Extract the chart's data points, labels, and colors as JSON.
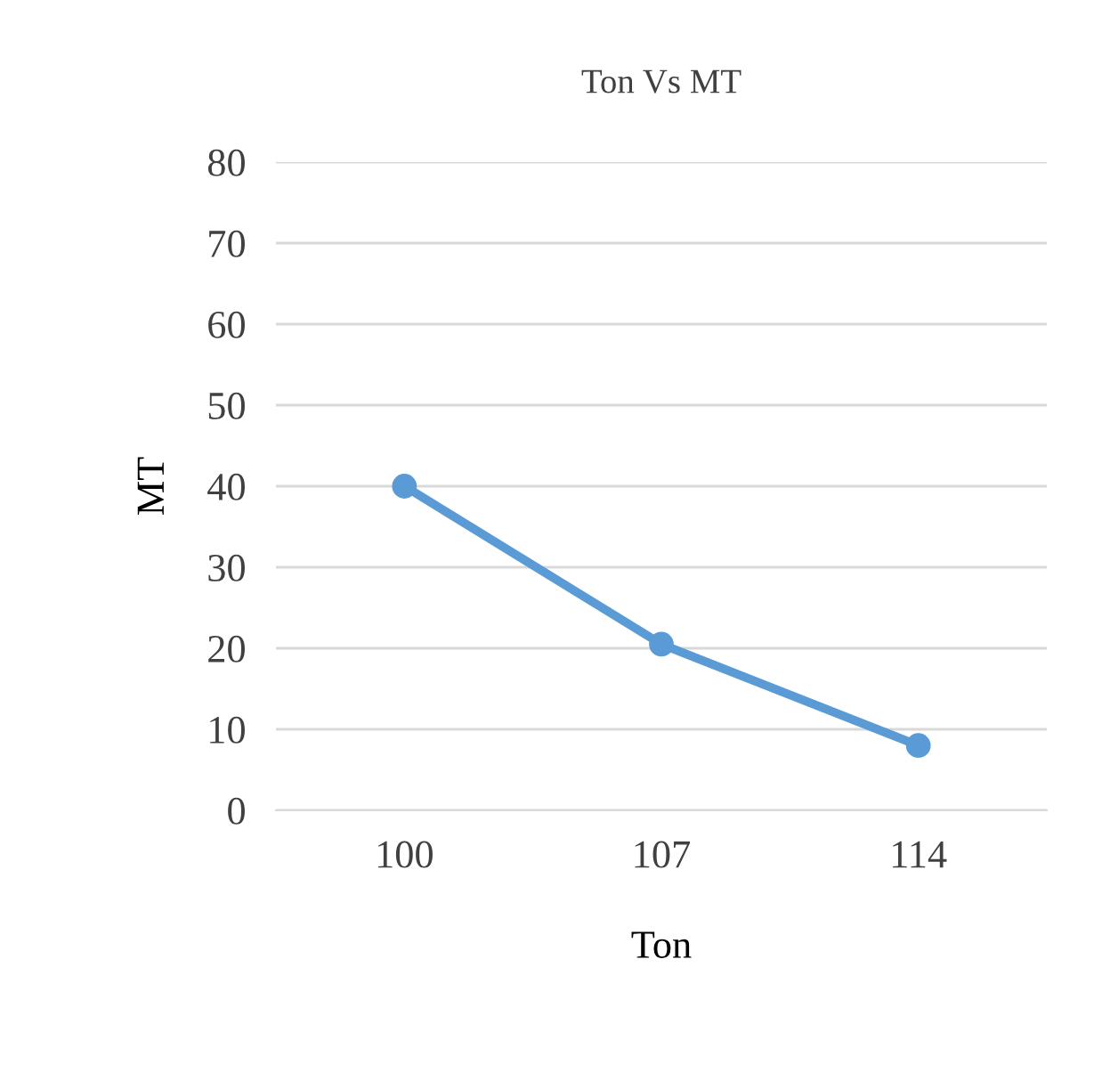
{
  "chart_data": {
    "type": "line",
    "title": "Ton Vs MT",
    "xlabel": "Ton",
    "ylabel": "MT",
    "categories": [
      "100",
      "107",
      "114"
    ],
    "series": [
      {
        "color": "#5b9bd5",
        "values": [
          40,
          20.5,
          8
        ]
      }
    ],
    "ylim": [
      0,
      80
    ],
    "yticks": [
      0,
      10,
      20,
      30,
      40,
      50,
      60,
      70,
      80
    ],
    "grid": "y",
    "marker": "circle",
    "line_style": "solid",
    "legend": false
  }
}
